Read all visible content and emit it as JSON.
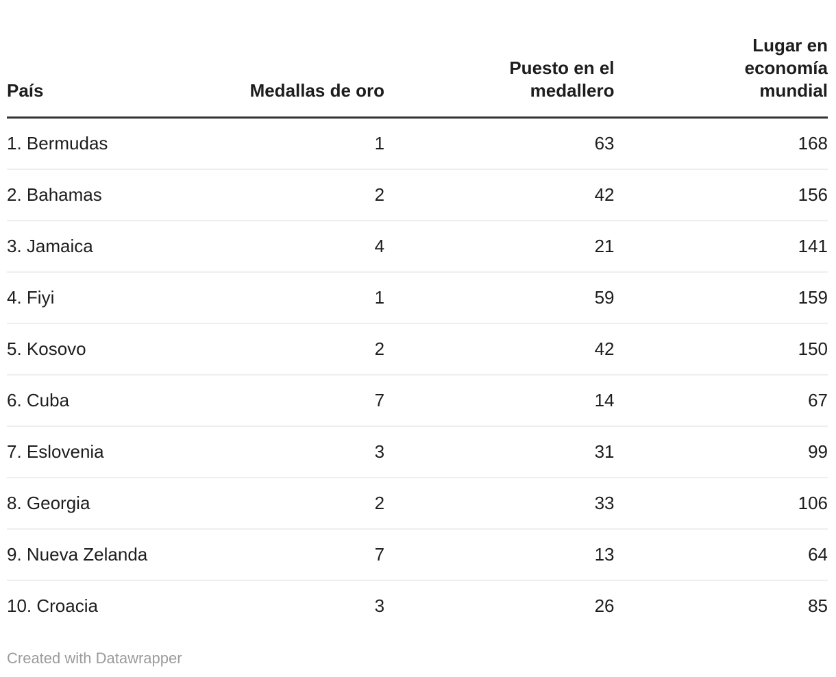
{
  "chart_data": {
    "type": "table",
    "columns": [
      "País",
      "Medallas de oro",
      "Puesto en el medallero",
      "Lugar en economía mundial"
    ],
    "rows": [
      [
        "1. Bermudas",
        "1",
        "63",
        "168"
      ],
      [
        "2. Bahamas",
        "2",
        "42",
        "156"
      ],
      [
        "3. Jamaica",
        "4",
        "21",
        "141"
      ],
      [
        "4. Fiyi",
        "1",
        "59",
        "159"
      ],
      [
        "5. Kosovo",
        "2",
        "42",
        "150"
      ],
      [
        "6. Cuba",
        "7",
        "14",
        "67"
      ],
      [
        "7. Eslovenia",
        "3",
        "31",
        "99"
      ],
      [
        "8. Georgia",
        "2",
        "33",
        "106"
      ],
      [
        "9. Nueva Zelanda",
        "7",
        "13",
        "64"
      ],
      [
        "10. Croacia",
        "3",
        "26",
        "85"
      ]
    ],
    "layout": {
      "column_alignment": [
        "left",
        "right",
        "right",
        "right"
      ],
      "header_border_color": "#333333",
      "row_border_color": "#eeeeee"
    }
  },
  "footer": {
    "attribution": "Created with Datawrapper"
  },
  "colors": {
    "text": "#1d1d1d",
    "attribution": "#9b9b9b",
    "background": "#ffffff"
  }
}
